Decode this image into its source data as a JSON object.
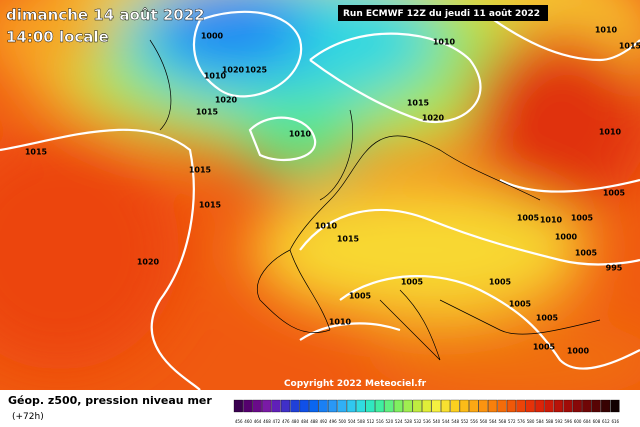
{
  "header": {
    "title": "dimanche 14 août 2022",
    "subtitle": "14:00 locale",
    "run": "Run ECMWF 12Z du jeudi 11 août 2022"
  },
  "copyright": "Copyright 2022 Meteociel.fr",
  "isobar_labels": [
    "1000",
    "1010",
    "1020",
    "1025",
    "1020",
    "1015",
    "1010",
    "1015",
    "1015",
    "1015",
    "1020",
    "1010",
    "1015",
    "1020",
    "1010",
    "1015",
    "1010",
    "1005",
    "1005",
    "1005",
    "1005",
    "1005",
    "1005",
    "1000",
    "1005",
    "1010",
    "1005",
    "1000",
    "1005",
    "995",
    "1005",
    "1010",
    "1015",
    "1010"
  ],
  "legend": {
    "title": "Géop. z500, pression niveau mer",
    "lead": "(+72h)",
    "labels": [
      "456",
      "460",
      "464",
      "468",
      "472",
      "476",
      "480",
      "484",
      "488",
      "492",
      "496",
      "500",
      "504",
      "508",
      "512",
      "516",
      "520",
      "524",
      "528",
      "532",
      "536",
      "540",
      "544",
      "548",
      "552",
      "556",
      "560",
      "564",
      "568",
      "572",
      "576",
      "580",
      "584",
      "588",
      "592",
      "596",
      "600",
      "604",
      "608",
      "612",
      "616"
    ],
    "colors": [
      "#3a0050",
      "#55006e",
      "#6a0a8a",
      "#7a1aa6",
      "#6020b8",
      "#4030c8",
      "#2040d8",
      "#1050e8",
      "#0a66f0",
      "#1a80f4",
      "#2a98f6",
      "#30b0f6",
      "#30c8f0",
      "#30dce0",
      "#30e8c0",
      "#40eea0",
      "#60f080",
      "#80f060",
      "#a0ee50",
      "#c0ec40",
      "#e0ee38",
      "#f4f040",
      "#f8e030",
      "#fcd020",
      "#fcbc18",
      "#fca814",
      "#fc9410",
      "#f8800c",
      "#f46c0a",
      "#f05808",
      "#ec4408",
      "#e63208",
      "#dc2408",
      "#cc1a08",
      "#b81208",
      "#a00c08",
      "#880808",
      "#700606",
      "#580404",
      "#380202",
      "#100000"
    ]
  }
}
